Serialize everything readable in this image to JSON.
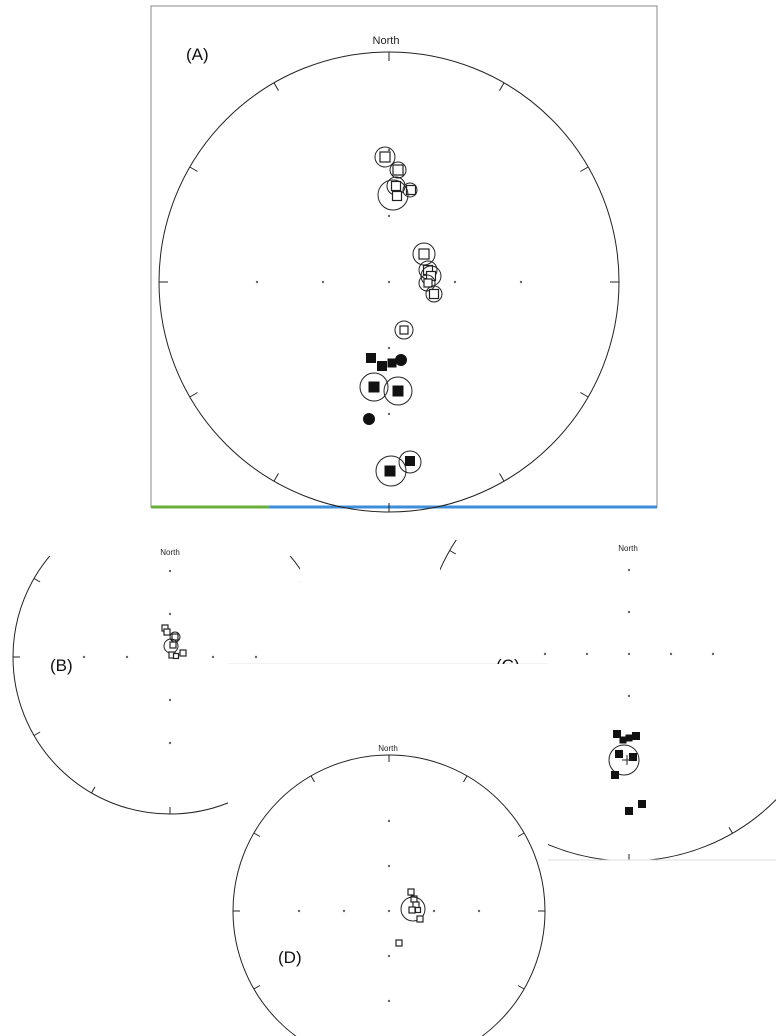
{
  "figure": {
    "panels": [
      {
        "id": "A",
        "label": "(A)",
        "north_label": "North"
      },
      {
        "id": "B",
        "label": "(B)",
        "north_label": "North"
      },
      {
        "id": "C",
        "label": "(C)",
        "north_label": "North"
      },
      {
        "id": "D",
        "label": "(D)",
        "north_label": "North"
      }
    ],
    "colors": {
      "frame_bar_green": "#6aaf3c",
      "frame_bar_blue": "#3d8ed8"
    }
  }
}
